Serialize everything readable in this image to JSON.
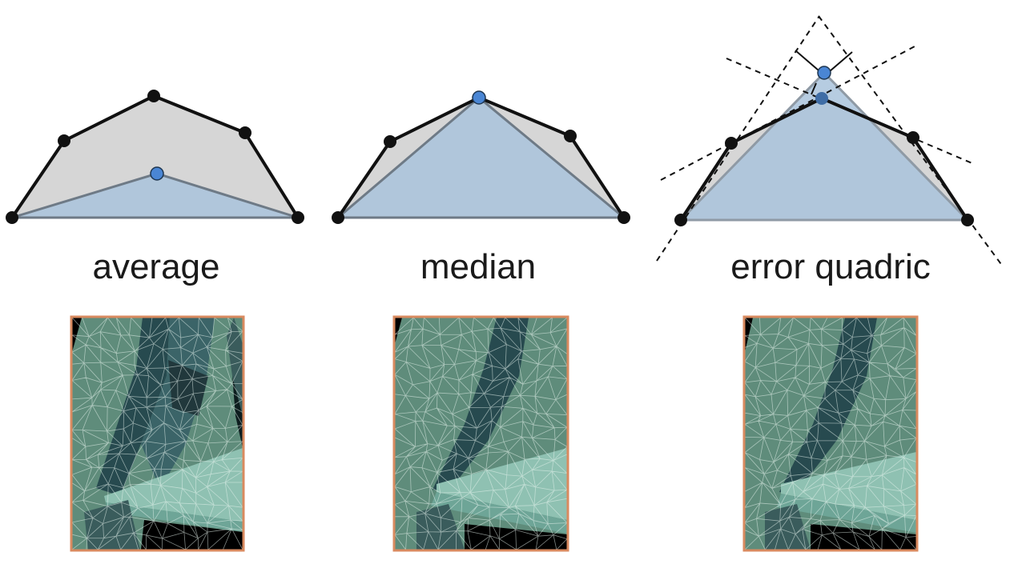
{
  "panels": [
    {
      "id": "average",
      "label": "average"
    },
    {
      "id": "median",
      "label": "median"
    },
    {
      "id": "error-quadric",
      "label": "error quadric"
    }
  ],
  "colors": {
    "background": "#ffffff",
    "original_polygon_fill": "#d6d6d6",
    "simplified_fill": "#a9c3dc",
    "new_vertex": "#4a86d4",
    "vertex": "#111111",
    "image_border": "#d98a5f",
    "mesh_base": "#5f8c7b",
    "mesh_dark": "#274a4f",
    "mesh_light": "#8fc1b2",
    "mesh_wire": "#e8f4ee"
  },
  "icons": [
    "vertex-dot",
    "new-vertex-dot",
    "tangent-plane-line",
    "mesh-render"
  ]
}
